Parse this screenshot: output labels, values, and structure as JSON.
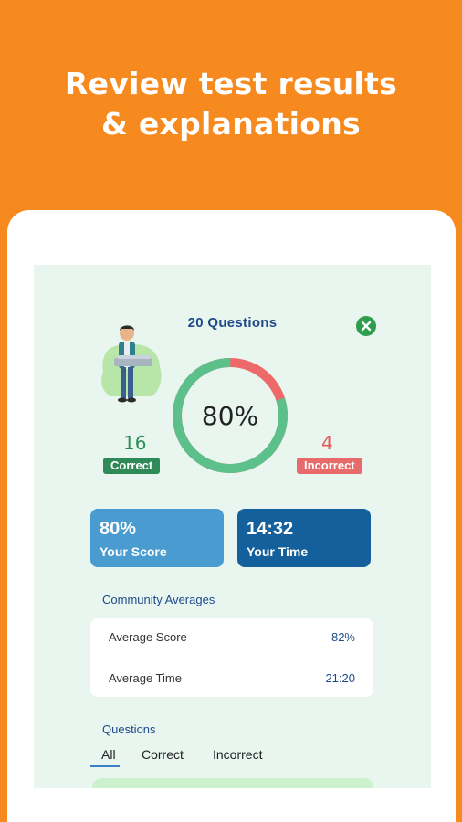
{
  "promo": {
    "headline_line1": "Review test results",
    "headline_line2": "& explanations"
  },
  "results": {
    "question_count_label": "20 Questions",
    "score_percent_label": "80%",
    "score_fraction": 0.8,
    "correct_count": "16",
    "correct_label": "Correct",
    "incorrect_count": "4",
    "incorrect_label": "Incorrect"
  },
  "cards": {
    "score_value": "80%",
    "score_label": "Your Score",
    "time_value": "14:32",
    "time_label": "Your Time"
  },
  "community": {
    "title": "Community Averages",
    "rows": [
      {
        "label": "Average Score",
        "value": "82%"
      },
      {
        "label": "Average Time",
        "value": "21:20"
      }
    ]
  },
  "questions": {
    "title": "Questions",
    "tabs": [
      "All",
      "Correct",
      "Incorrect"
    ]
  },
  "colors": {
    "background": "#F68A1E",
    "correct": "#2E8B57",
    "incorrect": "#E96A6A",
    "ring_correct": "#5CC08A",
    "ring_incorrect": "#EE6A6A",
    "score_card": "#4A9BD0",
    "time_card": "#13609C"
  },
  "icons": {
    "close": "close-icon",
    "illustration": "student-with-laptop-illustration"
  }
}
